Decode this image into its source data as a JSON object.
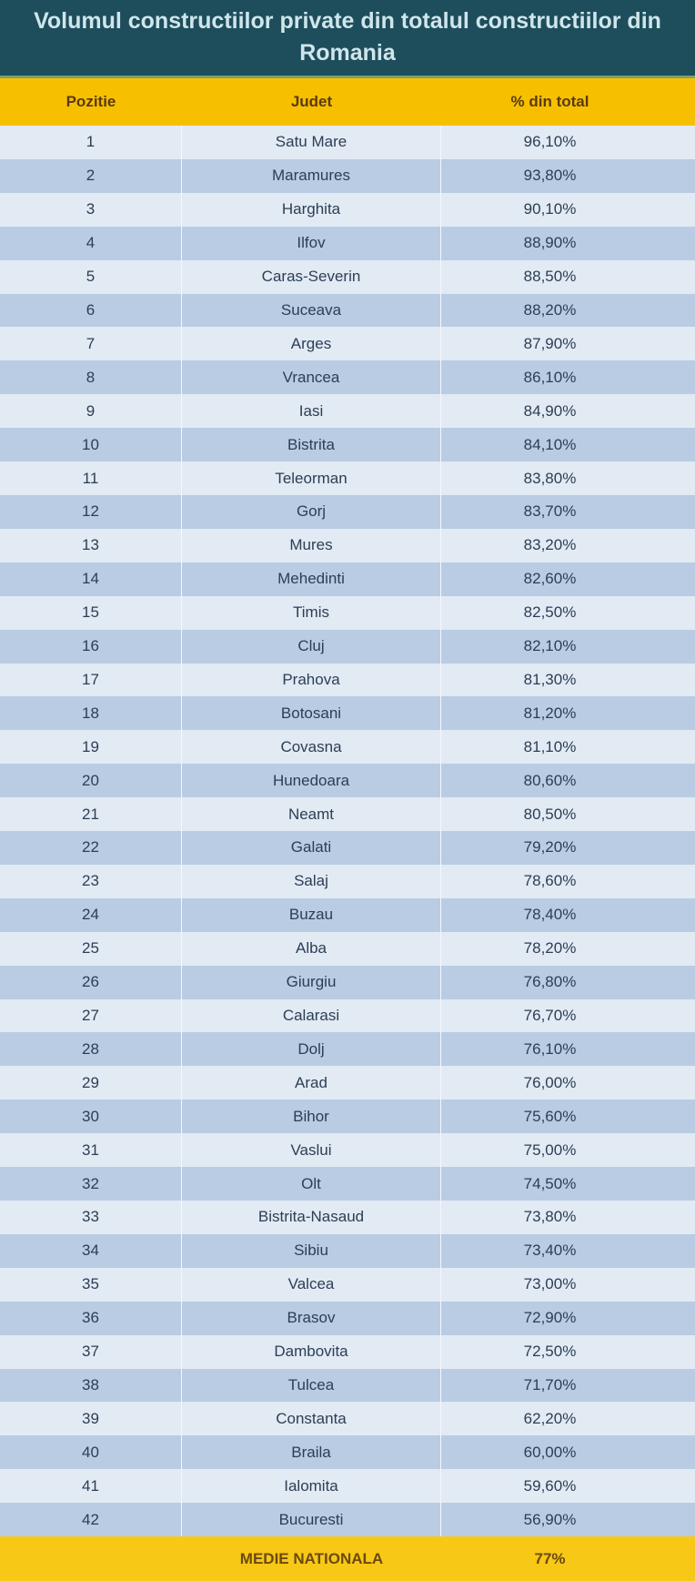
{
  "title": "Volumul constructiilor private din totalul constructiilor din Romania",
  "headers": [
    "Pozitie",
    "Judet",
    "% din total"
  ],
  "rows": [
    [
      "1",
      "Satu Mare",
      "96,10%"
    ],
    [
      "2",
      "Maramures",
      "93,80%"
    ],
    [
      "3",
      "Harghita",
      "90,10%"
    ],
    [
      "4",
      "Ilfov",
      "88,90%"
    ],
    [
      "5",
      "Caras-Severin",
      "88,50%"
    ],
    [
      "6",
      "Suceava",
      "88,20%"
    ],
    [
      "7",
      "Arges",
      "87,90%"
    ],
    [
      "8",
      "Vrancea",
      "86,10%"
    ],
    [
      "9",
      "Iasi",
      "84,90%"
    ],
    [
      "10",
      "Bistrita",
      "84,10%"
    ],
    [
      "11",
      "Teleorman",
      "83,80%"
    ],
    [
      "12",
      "Gorj",
      "83,70%"
    ],
    [
      "13",
      "Mures",
      "83,20%"
    ],
    [
      "14",
      "Mehedinti",
      "82,60%"
    ],
    [
      "15",
      "Timis",
      "82,50%"
    ],
    [
      "16",
      "Cluj",
      "82,10%"
    ],
    [
      "17",
      "Prahova",
      "81,30%"
    ],
    [
      "18",
      "Botosani",
      "81,20%"
    ],
    [
      "19",
      "Covasna",
      "81,10%"
    ],
    [
      "20",
      "Hunedoara",
      "80,60%"
    ],
    [
      "21",
      "Neamt",
      "80,50%"
    ],
    [
      "22",
      "Galati",
      "79,20%"
    ],
    [
      "23",
      "Salaj",
      "78,60%"
    ],
    [
      "24",
      "Buzau",
      "78,40%"
    ],
    [
      "25",
      "Alba",
      "78,20%"
    ],
    [
      "26",
      "Giurgiu",
      "76,80%"
    ],
    [
      "27",
      "Calarasi",
      "76,70%"
    ],
    [
      "28",
      "Dolj",
      "76,10%"
    ],
    [
      "29",
      "Arad",
      "76,00%"
    ],
    [
      "30",
      "Bihor",
      "75,60%"
    ],
    [
      "31",
      "Vaslui",
      "75,00%"
    ],
    [
      "32",
      "Olt",
      "74,50%"
    ],
    [
      "33",
      "Bistrita-Nasaud",
      "73,80%"
    ],
    [
      "34",
      "Sibiu",
      "73,40%"
    ],
    [
      "35",
      "Valcea",
      "73,00%"
    ],
    [
      "36",
      "Brasov",
      "72,90%"
    ],
    [
      "37",
      "Dambovita",
      "72,50%"
    ],
    [
      "38",
      "Tulcea",
      "71,70%"
    ],
    [
      "39",
      "Constanta",
      "62,20%"
    ],
    [
      "40",
      "Braila",
      "60,00%"
    ],
    [
      "41",
      "Ialomita",
      "59,60%"
    ],
    [
      "42",
      "Bucuresti",
      "56,90%"
    ]
  ],
  "footer": {
    "label": "MEDIE NATIONALA",
    "value": "77%"
  },
  "colors": {
    "title_bg": "#1e4d5c",
    "header_bg": "#f6c000",
    "row_light": "#e2eaf4",
    "row_dark": "#b9cce3"
  }
}
